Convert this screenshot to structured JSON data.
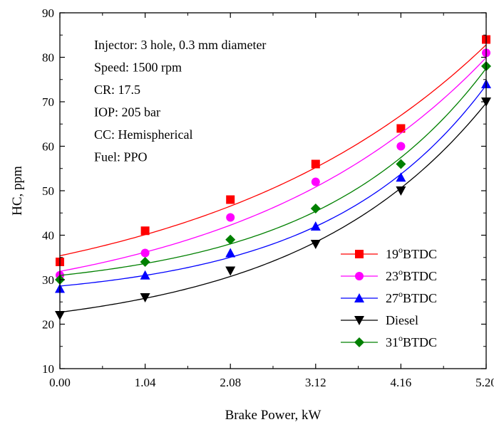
{
  "chart_data": {
    "type": "scatter",
    "xlabel": "Brake Power, kW",
    "ylabel": "HC, ppm",
    "xlim": [
      0,
      5.2
    ],
    "ylim": [
      10,
      90
    ],
    "x_ticks": [
      "0.00",
      "1.04",
      "2.08",
      "3.12",
      "4.16",
      "5.20"
    ],
    "y_ticks": [
      10,
      20,
      30,
      40,
      50,
      60,
      70,
      80,
      90
    ],
    "x": [
      0,
      1.04,
      2.08,
      3.12,
      4.16,
      5.2
    ],
    "grid": false,
    "legend_position": "bottom-right",
    "annotations": [
      "Injector: 3 hole, 0.3 mm diameter",
      "Speed: 1500 rpm",
      "CR: 17.5",
      "IOP: 205 bar",
      "CC: Hemispherical",
      "Fuel: PPO"
    ],
    "series": [
      {
        "name": "19",
        "name_sup": "o",
        "name_suffix": "BTDC",
        "color": "#ff0000",
        "marker": "square",
        "values": [
          34,
          41,
          48,
          56,
          64,
          84
        ]
      },
      {
        "name": "23",
        "name_sup": "o",
        "name_suffix": "BTDC",
        "color": "#ff00ff",
        "marker": "circle",
        "values": [
          31,
          36,
          44,
          52,
          60,
          81
        ]
      },
      {
        "name": "27",
        "name_sup": "o",
        "name_suffix": "BTDC",
        "color": "#0000ff",
        "marker": "triangle-up",
        "values": [
          28,
          31,
          36,
          42,
          53,
          74
        ]
      },
      {
        "name": "Diesel",
        "name_sup": "",
        "name_suffix": "",
        "color": "#000000",
        "marker": "triangle-down",
        "values": [
          22,
          26,
          32,
          38,
          50,
          70
        ]
      },
      {
        "name": "31",
        "name_sup": "o",
        "name_suffix": "BTDC",
        "color": "#008000",
        "marker": "diamond",
        "values": [
          30,
          34,
          39,
          46,
          56,
          78
        ]
      }
    ]
  }
}
